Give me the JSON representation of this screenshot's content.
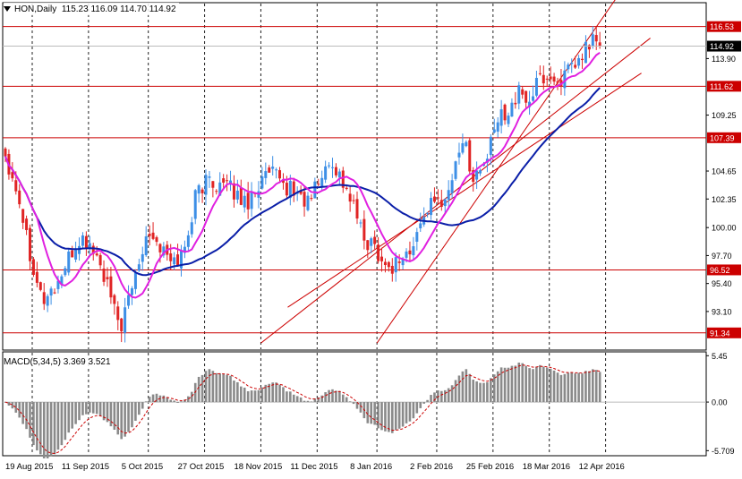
{
  "header": {
    "symbol": "HON",
    "timeframe": "Daily",
    "open": "115.23",
    "high": "116.09",
    "low": "114.70",
    "close": "114.92"
  },
  "macd_panel": {
    "label": "MACD(5,34,5)",
    "value": "3.369",
    "signal": "3.521"
  },
  "colors": {
    "bull": "#3d8fe6",
    "bear": "#e02424",
    "ma_fast": "#e020e0",
    "ma_slow": "#0a1ea8",
    "level": "#cc0000",
    "channel": "#cc0000",
    "grid": "#222222",
    "hist": "#8a8a8a",
    "signal": "#cc0000"
  },
  "chart_data": {
    "type": "candlestick",
    "price_scale": {
      "ticks": [
        "116.53",
        "113.90",
        "111.62",
        "109.25",
        "107.39",
        "104.65",
        "102.35",
        "100.00",
        "97.70",
        "96.52",
        "95.40",
        "93.10",
        "91.34"
      ],
      "plain_ticks": [
        "113.90",
        "109.25",
        "104.65",
        "102.35",
        "100.00",
        "97.70",
        "95.40",
        "93.10"
      ],
      "ylim": [
        90.0,
        118.2
      ]
    },
    "current_price": "114.92",
    "levels": [
      {
        "price": 116.53,
        "label": "116.53"
      },
      {
        "price": 111.62,
        "label": "111.62"
      },
      {
        "price": 107.39,
        "label": "107.39"
      },
      {
        "price": 96.52,
        "label": "96.52"
      },
      {
        "price": 91.34,
        "label": "91.34"
      }
    ],
    "x_labels": [
      "19 Aug 2015",
      "11 Sep 2015",
      "5 Oct 2015",
      "27 Oct 2015",
      "18 Nov 2015",
      "11 Dec 2015",
      "8 Jan 2016",
      "2 Feb 2016",
      "25 Feb 2016",
      "18 Mar 2016",
      "12 Apr 2016"
    ],
    "channel": {
      "lower": [
        [
          "18 Nov 2015",
          90.5
        ],
        [
          "12 Apr 2016",
          112.7
        ]
      ],
      "upper": [
        [
          "8 Jan 2016",
          90.5
        ],
        [
          "12 Apr 2016",
          117.6
        ]
      ]
    },
    "series": [
      {
        "name": "",
        "kind": "ma_fast"
      },
      {
        "name": "",
        "kind": "ma_slow"
      }
    ],
    "macd": {
      "ticks": [
        "5.45",
        "0.00",
        "-5.709"
      ],
      "ylim": [
        -6.2,
        5.9
      ]
    }
  }
}
